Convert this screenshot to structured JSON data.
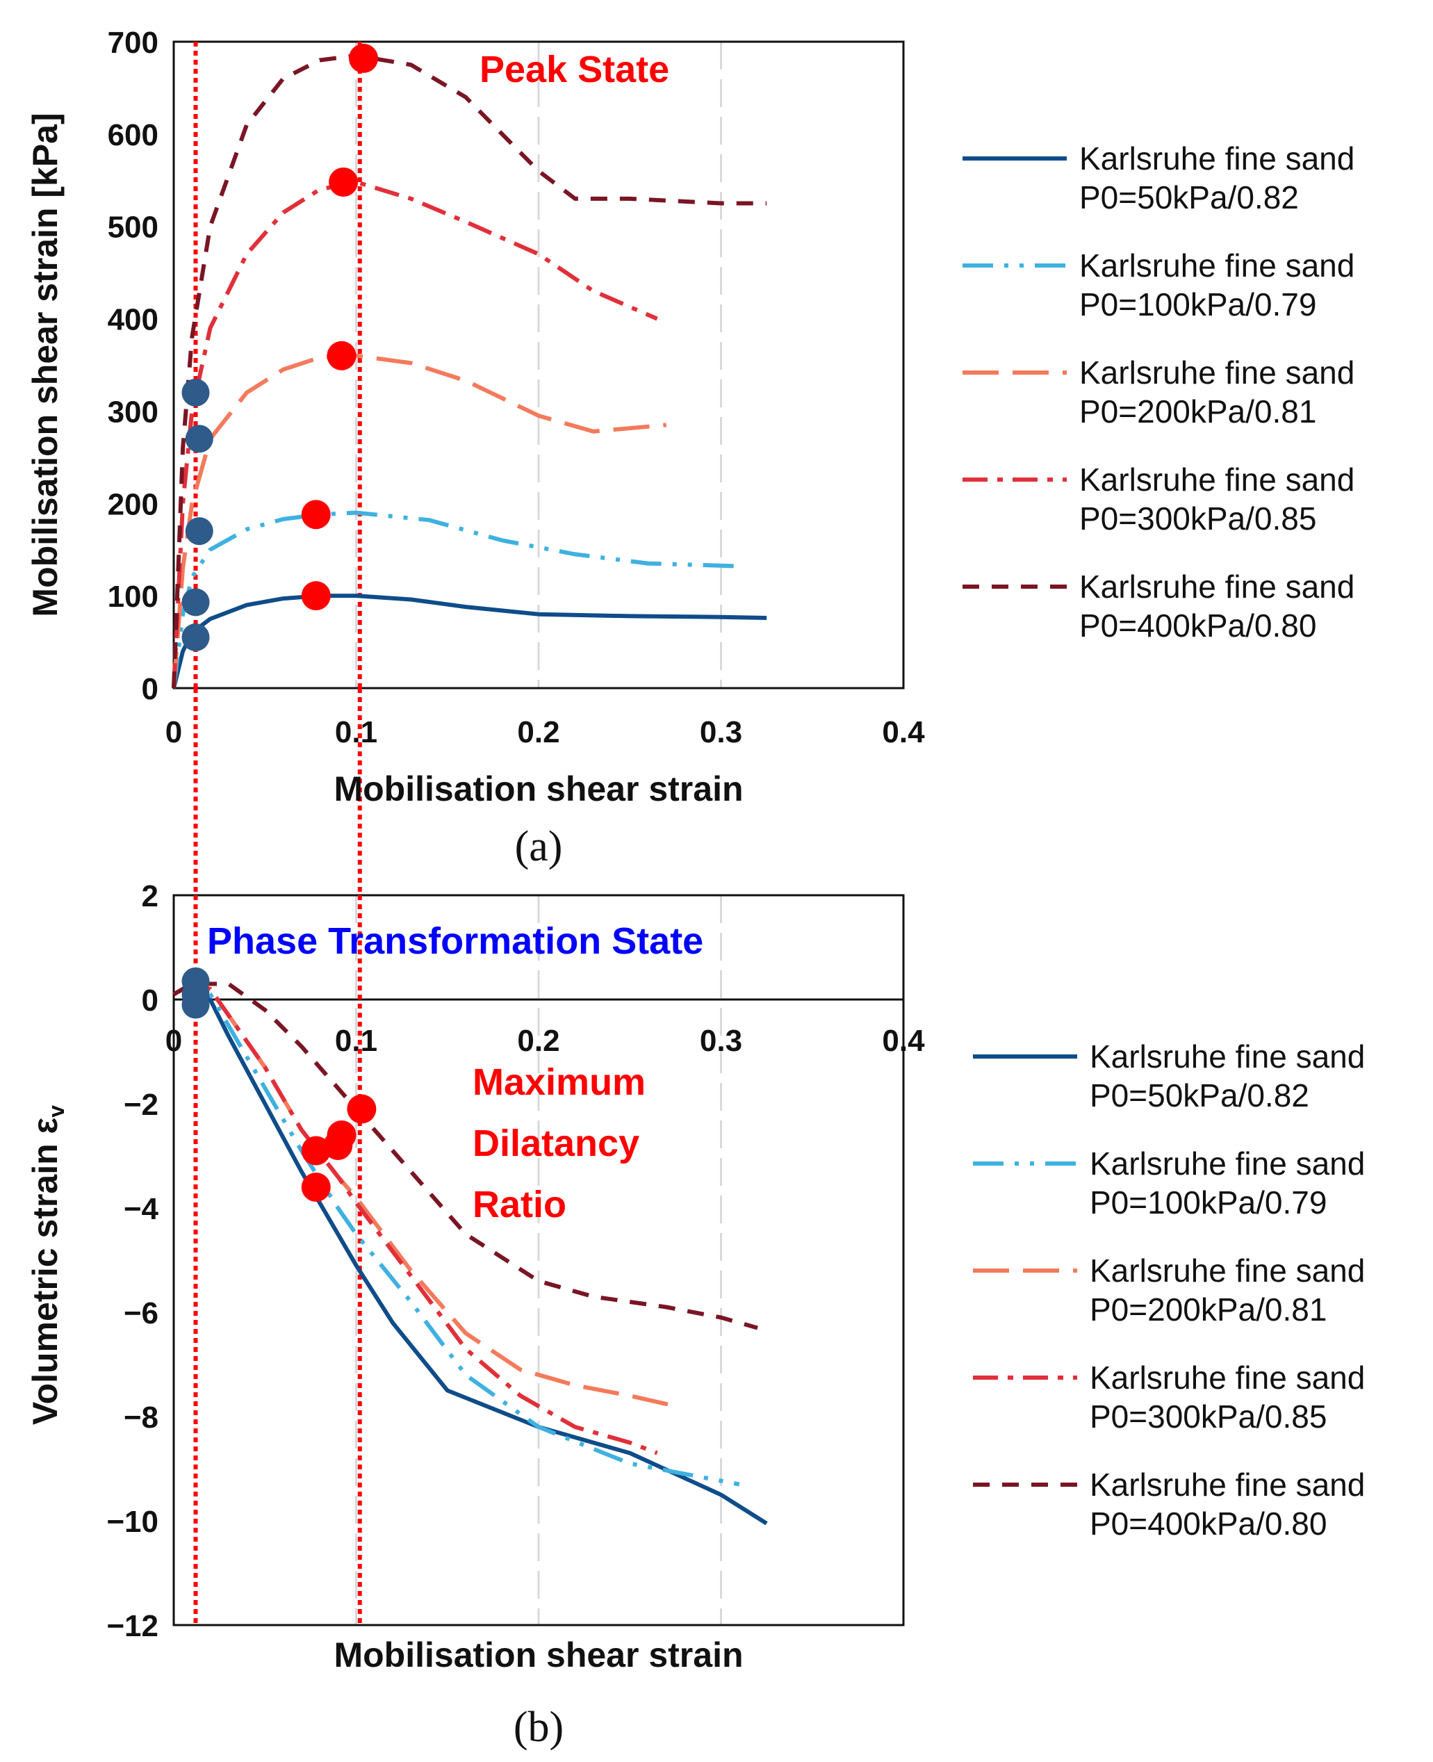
{
  "colors": {
    "dense_sand": "#0f4c8a",
    "medium_sand": "#3fb1e0",
    "loose_sand": "#f37a5c",
    "p300": "#e0303a",
    "p400": "#7a1524",
    "peak_marker": "#ff0000",
    "phase_marker": "#2e5b8a",
    "guide_line": "#ff0000",
    "grid": "#d9d9d9"
  },
  "chart_data": [
    {
      "id": "a",
      "type": "line",
      "caption": "(a)",
      "xlabel": "Mobilisation shear strain",
      "ylabel": "Mobilisation shear strain [kPa]",
      "xlim": [
        0,
        0.4
      ],
      "ylim": [
        0,
        700
      ],
      "xticks": [
        "0",
        "0.1",
        "0.2",
        "0.3",
        "0.4"
      ],
      "yticks": [
        "0",
        "100",
        "200",
        "300",
        "400",
        "500",
        "600",
        "700"
      ],
      "annotation": "Peak State",
      "series": [
        {
          "name": "Karlsruhe fine sand P0=50kPa/0.82",
          "line1": "Karlsruhe fine sand",
          "line2": "P0=50kPa/0.82",
          "style": "solid",
          "color": "#0f4c8a",
          "x": [
            0,
            0.005,
            0.01,
            0.02,
            0.04,
            0.06,
            0.08,
            0.1,
            0.13,
            0.16,
            0.2,
            0.25,
            0.3,
            0.325
          ],
          "y": [
            0,
            40,
            60,
            75,
            90,
            97,
            100,
            100,
            96,
            88,
            80,
            78,
            77,
            76
          ]
        },
        {
          "name": "Karlsruhe fine sand P0=100kPa/0.79",
          "line1": "Karlsruhe fine sand",
          "line2": "P0=100kPa/0.79",
          "style": "dashdotdot",
          "color": "#3fb1e0",
          "x": [
            0,
            0.005,
            0.01,
            0.02,
            0.04,
            0.06,
            0.08,
            0.1,
            0.14,
            0.18,
            0.22,
            0.26,
            0.31
          ],
          "y": [
            0,
            80,
            120,
            150,
            172,
            183,
            188,
            190,
            182,
            160,
            145,
            135,
            132
          ]
        },
        {
          "name": "Karlsruhe fine sand P0=200kPa/0.81",
          "line1": "Karlsruhe fine sand",
          "line2": "P0=200kPa/0.81",
          "style": "longdash",
          "color": "#f37a5c",
          "x": [
            0,
            0.005,
            0.01,
            0.02,
            0.04,
            0.06,
            0.08,
            0.1,
            0.13,
            0.16,
            0.2,
            0.23,
            0.27
          ],
          "y": [
            0,
            130,
            200,
            270,
            320,
            345,
            358,
            360,
            352,
            333,
            295,
            278,
            285
          ]
        },
        {
          "name": "Karlsruhe fine sand P0=300kPa/0.85",
          "line1": "Karlsruhe fine sand",
          "line2": "P0=300kPa/0.85",
          "style": "dashdot",
          "color": "#e0303a",
          "x": [
            0,
            0.005,
            0.01,
            0.02,
            0.04,
            0.06,
            0.08,
            0.1,
            0.13,
            0.16,
            0.2,
            0.23,
            0.265
          ],
          "y": [
            0,
            200,
            300,
            390,
            470,
            515,
            540,
            548,
            530,
            505,
            470,
            430,
            400
          ]
        },
        {
          "name": "Karlsruhe fine sand P0=400kPa/0.80",
          "line1": "Karlsruhe fine sand",
          "line2": "P0=400kPa/0.80",
          "style": "dash",
          "color": "#7a1524",
          "x": [
            0,
            0.005,
            0.01,
            0.02,
            0.04,
            0.06,
            0.08,
            0.1,
            0.13,
            0.16,
            0.18,
            0.2,
            0.22,
            0.25,
            0.3,
            0.325
          ],
          "y": [
            0,
            260,
            380,
            500,
            610,
            660,
            680,
            685,
            675,
            640,
            600,
            560,
            530,
            530,
            525,
            525
          ]
        }
      ],
      "peak_points": {
        "x": [
          0.078,
          0.078,
          0.092,
          0.093,
          0.104
        ],
        "y": [
          100,
          188,
          360,
          548,
          682
        ]
      },
      "phase_points": {
        "x": [
          0.012,
          0.012,
          0.014,
          0.014,
          0.012
        ],
        "y": [
          55,
          93,
          170,
          270,
          320
        ]
      },
      "vlines": [
        0.012,
        0.102
      ]
    },
    {
      "id": "b",
      "type": "line",
      "caption": "(b)",
      "xlabel": "Mobilisation shear strain",
      "ylabel": "Volumetric strain εv",
      "ylabel_main": "Volumetric strain ε",
      "ylabel_sub": "v",
      "xlim": [
        0,
        0.4
      ],
      "ylim": [
        -12,
        2
      ],
      "xticks": [
        "0",
        "0.1",
        "0.2",
        "0.3",
        "0.4"
      ],
      "yticks": [
        "2",
        "0",
        "−2",
        "−4",
        "−6",
        "−8",
        "−10",
        "−12"
      ],
      "annotation_top": "Phase Transformation State",
      "annotation_lines": [
        "Maximum",
        "Dilatancy",
        "Ratio"
      ],
      "series": [
        {
          "name": "Karlsruhe fine sand P0=50kPa/0.82",
          "line1": "Karlsruhe fine sand",
          "line2": "P0=50kPa/0.82",
          "style": "solid",
          "color": "#0f4c8a",
          "x": [
            0,
            0.01,
            0.02,
            0.03,
            0.05,
            0.07,
            0.09,
            0.1,
            0.12,
            0.15,
            0.2,
            0.25,
            0.3,
            0.325
          ],
          "y": [
            0.1,
            0.3,
            0.0,
            -0.7,
            -2.0,
            -3.3,
            -4.5,
            -5.1,
            -6.2,
            -7.5,
            -8.2,
            -8.7,
            -9.5,
            -10.05
          ]
        },
        {
          "name": "Karlsruhe fine sand P0=100kPa/0.79",
          "line1": "Karlsruhe fine sand",
          "line2": "P0=100kPa/0.79",
          "style": "dashdotdot",
          "color": "#3fb1e0",
          "x": [
            0,
            0.01,
            0.02,
            0.03,
            0.05,
            0.07,
            0.09,
            0.1,
            0.13,
            0.16,
            0.2,
            0.25,
            0.31
          ],
          "y": [
            0.1,
            0.3,
            0.1,
            -0.5,
            -1.7,
            -2.9,
            -4.0,
            -4.5,
            -5.8,
            -7.2,
            -8.2,
            -8.9,
            -9.3
          ]
        },
        {
          "name": "Karlsruhe fine sand P0=200kPa/0.81",
          "line1": "Karlsruhe fine sand",
          "line2": "P0=200kPa/0.81",
          "style": "longdash",
          "color": "#f37a5c",
          "x": [
            0,
            0.01,
            0.02,
            0.03,
            0.05,
            0.07,
            0.09,
            0.1,
            0.13,
            0.16,
            0.19,
            0.22,
            0.25,
            0.275
          ],
          "y": [
            0.1,
            0.3,
            0.2,
            -0.3,
            -1.3,
            -2.5,
            -3.4,
            -3.8,
            -5.2,
            -6.4,
            -7.1,
            -7.4,
            -7.6,
            -7.8
          ]
        },
        {
          "name": "Karlsruhe fine sand P0=300kPa/0.85",
          "line1": "Karlsruhe fine sand",
          "line2": "P0=300kPa/0.85",
          "style": "dashdot",
          "color": "#e0303a",
          "x": [
            0,
            0.01,
            0.02,
            0.03,
            0.05,
            0.07,
            0.09,
            0.1,
            0.13,
            0.16,
            0.19,
            0.22,
            0.25,
            0.265
          ],
          "y": [
            0.1,
            0.3,
            0.2,
            -0.3,
            -1.3,
            -2.5,
            -3.4,
            -3.9,
            -5.3,
            -6.7,
            -7.6,
            -8.2,
            -8.5,
            -8.7
          ]
        },
        {
          "name": "Karlsruhe fine sand P0=400kPa/0.80",
          "line1": "Karlsruhe fine sand",
          "line2": "P0=400kPa/0.80",
          "style": "dash",
          "color": "#7a1524",
          "x": [
            0,
            0.01,
            0.03,
            0.05,
            0.07,
            0.09,
            0.1,
            0.13,
            0.16,
            0.2,
            0.23,
            0.27,
            0.3,
            0.32
          ],
          "y": [
            0.1,
            0.3,
            0.3,
            -0.2,
            -0.9,
            -1.7,
            -2.1,
            -3.3,
            -4.5,
            -5.4,
            -5.7,
            -5.9,
            -6.1,
            -6.3
          ]
        }
      ],
      "mdr_points": {
        "x": [
          0.078,
          0.078,
          0.09,
          0.092,
          0.103
        ],
        "y": [
          -3.6,
          -2.9,
          -2.8,
          -2.6,
          -2.1
        ]
      },
      "phase_points": {
        "x": [
          0.012,
          0.012,
          0.012
        ],
        "y": [
          0.35,
          0.1,
          -0.1
        ]
      },
      "vlines": [
        0.012,
        0.102
      ]
    }
  ]
}
